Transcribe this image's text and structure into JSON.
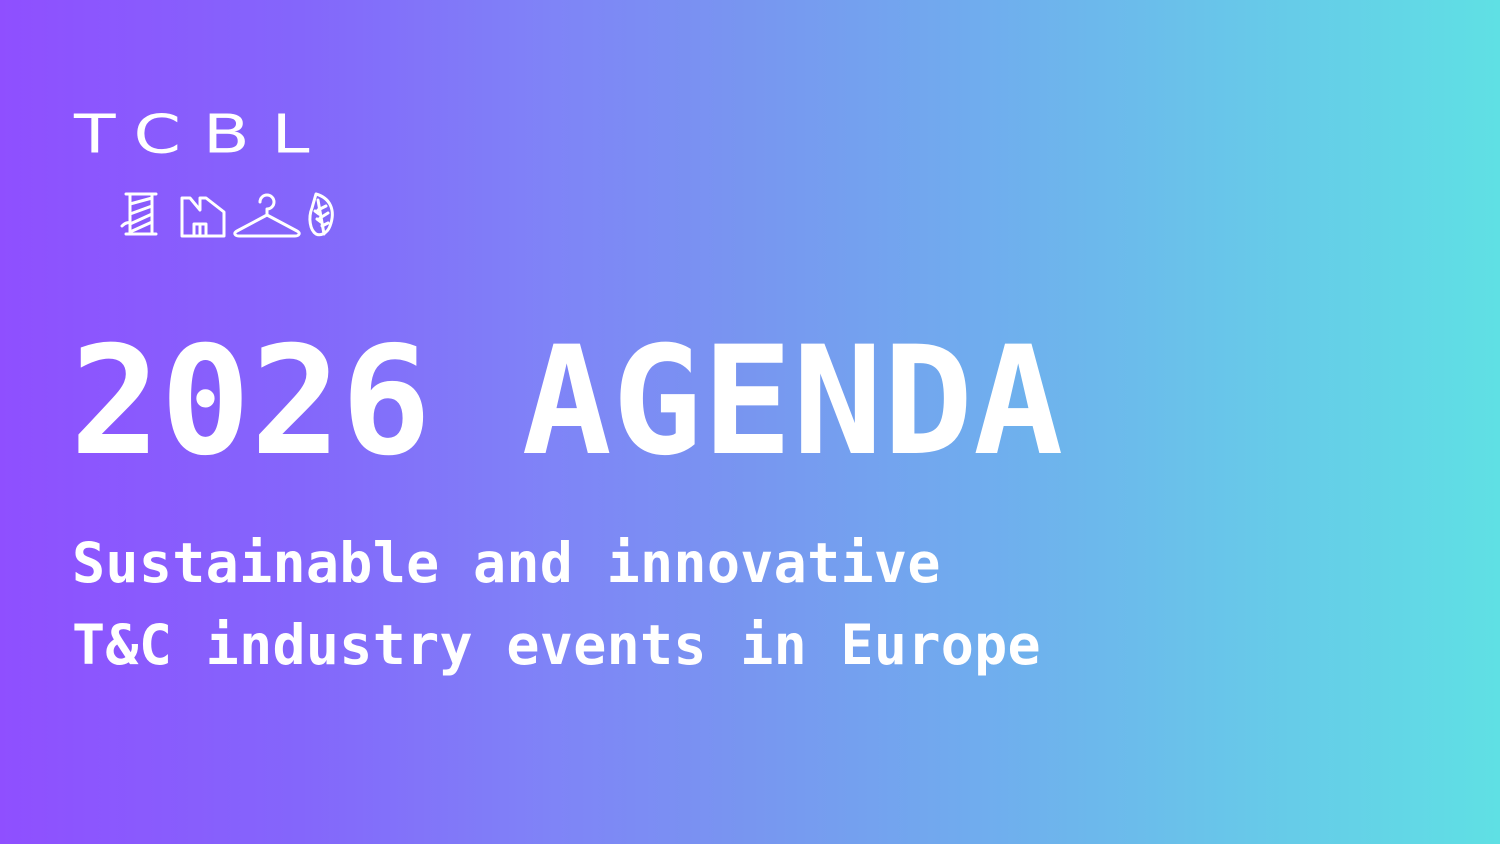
{
  "logo": {
    "text": "TCBL",
    "icons": [
      "thread-spool-icon",
      "factory-icon",
      "hanger-icon",
      "leaf-icon"
    ]
  },
  "title": "2026 AGENDA",
  "subtitle": {
    "line1": "Sustainable and innovative",
    "line2": "T&C industry events in Europe"
  },
  "colors": {
    "gradient_start": "#8f4fff",
    "gradient_end": "#5fe0e4",
    "text": "#ffffff"
  }
}
